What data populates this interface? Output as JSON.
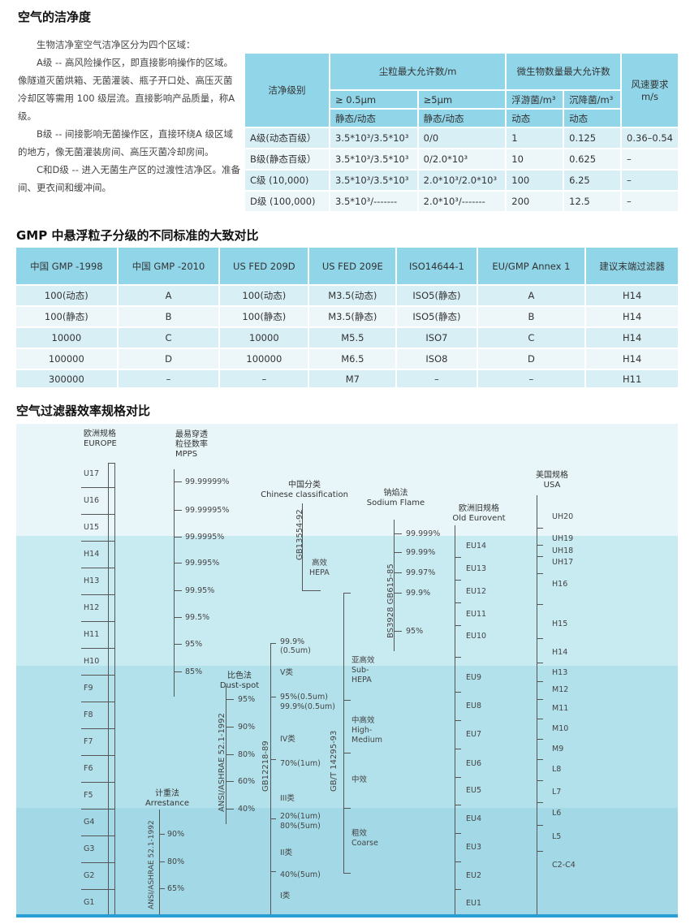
{
  "section1": {
    "title": "空气的洁净度",
    "paragraphs": [
      "生物洁净室空气洁净区分为四个区域：",
      "A级 -- 高风险操作区，即直接影响操作的区域。像隧道灭菌烘箱、无菌灌装、瓶子开口处、高压灭菌冷却区等需用 100 级层流。直接影响产品质量，称A级。",
      "B级 -- 间接影响无菌操作区，直接环绕A 级区域的地方，像无菌灌装房间、高压灭菌冷却房间。",
      "C和D级 -- 进入无菌生产区的过渡性洁净区。准备间、更衣间和缓冲间。"
    ],
    "table": {
      "h_grade": "洁净级别",
      "h_dust": "尘粒最大允许数/m",
      "h_micro": "微生物数量最大允许数",
      "h_wind": "风速要求",
      "h_wind_unit": "m/s",
      "h_05": "≥ 0.5μm",
      "h_5": "≥5μm",
      "h_float": "浮游菌/m³",
      "h_settle": "沉降菌/m³",
      "h_static1": "静态/动态",
      "h_static2": "静态/动态",
      "h_dyn1": "动态",
      "h_dyn2": "动态",
      "rows": [
        [
          "A级(动态百级）",
          "3.5*10³/3.5*10³",
          "0/0",
          "1",
          "0.125",
          "0.36–0.54"
        ],
        [
          "B级(静态百级）",
          "3.5*10³/3.5*10³",
          "0/2.0*10³",
          "10",
          "0.625",
          "–"
        ],
        [
          "C级 (10,000)",
          "3.5*10³/3.5*10³",
          "2.0*10³/2.0*10³",
          "100",
          "6.25",
          "–"
        ],
        [
          "D级 (100,000)",
          "3.5*10³/-------",
          "2.0*10³/-------",
          "200",
          "12.5",
          "–"
        ]
      ]
    }
  },
  "section2": {
    "title": "GMP 中悬浮粒子分级的不同标准的大致对比",
    "headers": [
      "中国 GMP -1998",
      "中国 GMP -2010",
      "US FED 209D",
      "US FED 209E",
      "ISO14644-1",
      "EU/GMP Annex 1",
      "建议末端过滤器"
    ],
    "rows": [
      [
        "100(动态)",
        "A",
        "100(动态)",
        "M3.5(动态)",
        "ISO5(静态)",
        "A",
        "H14"
      ],
      [
        "100(静态)",
        "B",
        "100(静态)",
        "M3.5(静态)",
        "ISO5(静态)",
        "B",
        "H14"
      ],
      [
        "10000",
        "C",
        "10000",
        "M5.5",
        "ISO7",
        "C",
        "H14"
      ],
      [
        "100000",
        "D",
        "100000",
        "M6.5",
        "ISO8",
        "D",
        "H14"
      ],
      [
        "300000",
        "–",
        "–",
        "M7",
        "–",
        "–",
        "H11"
      ]
    ]
  },
  "section3": {
    "title": "空气过滤器效率规格对比",
    "europe": {
      "title_cn": "欧洲规格",
      "title_en": "EUROPE",
      "classes": [
        "U17",
        "U16",
        "U15",
        "H14",
        "H13",
        "H12",
        "H11",
        "H10",
        "F9",
        "F8",
        "F7",
        "F6",
        "F5",
        "G4",
        "G3",
        "G2",
        "G1"
      ]
    },
    "mpps": {
      "title_cn1": "最易穿透",
      "title_cn2": "粒径数率",
      "title_en": "MPPS",
      "values": [
        "99.99999%",
        "99.99995%",
        "99.9995%",
        "99.995%",
        "99.95%",
        "99.5%",
        "95%",
        "85%"
      ]
    },
    "chinese": {
      "title_cn": "中国分类",
      "title_en": "Chinese classification",
      "standard": "GB13554-92",
      "hepa_cn": "高效",
      "hepa_en": "HEPA"
    },
    "sodium": {
      "title_cn": "钠焰法",
      "title_en": "Sodium Flame",
      "standard": "BS3928 GB615-85",
      "values": [
        "99.999%",
        "99.99%",
        "99.97%",
        "99.9%",
        "95%"
      ]
    },
    "eurovent": {
      "title_cn": "欧洲旧规格",
      "title_en": "Old Eurovent",
      "classes": [
        "EU14",
        "EU13",
        "EU12",
        "EU11",
        "EU10",
        "EU9",
        "EU8",
        "EU7",
        "EU6",
        "EU5",
        "EU4",
        "EU3",
        "EU2",
        "EU1"
      ]
    },
    "usa": {
      "title_cn": "美国规格",
      "title_en": "USA",
      "classes": [
        "UH20",
        "UH19",
        "UH18",
        "UH17",
        "H16",
        "H15",
        "H14",
        "H13",
        "M12",
        "M11",
        "M10",
        "M9",
        "L8",
        "L7",
        "L6",
        "L5",
        "C2-C4"
      ]
    },
    "dustspot": {
      "title_cn": "比色法",
      "title_en": "Dust-spot",
      "standard": "ANSI/ASHRAE 52.1-1992",
      "values": [
        "95%",
        "90%",
        "80%",
        "60%",
        "40%"
      ]
    },
    "gb12218": {
      "standard": "GB12218-89",
      "labels": [
        "99.9%",
        "(0.5um)",
        "V类",
        "95%(0.5um)",
        "99.9%(0.5um)",
        "IV类",
        "70%(1um)",
        "III类",
        "20%(1um)",
        "80%(5um)",
        "II类",
        "40%(5um)",
        "I类"
      ]
    },
    "gbt14295": {
      "standard": "GB/T 14295-93",
      "labels": [
        "亚高效",
        "Sub-",
        "HEPA",
        "中高效",
        "High-",
        "Medium",
        "中效",
        "粗效",
        "Coarse"
      ]
    },
    "arrestance": {
      "title_cn": "计重法",
      "title_en": "Arrestance",
      "standard": "ANSI/ASHRAE 52.1-1992",
      "values": [
        "90%",
        "80%",
        "65%"
      ]
    },
    "colors": {
      "band_top": "#e9f6f9",
      "band_2": "#c8eaf1",
      "band_3": "#b3e1eb",
      "band_4": "#a3d9e6",
      "bottom_bar": "#2a9fd6",
      "table_header": "#90d5e8"
    }
  }
}
